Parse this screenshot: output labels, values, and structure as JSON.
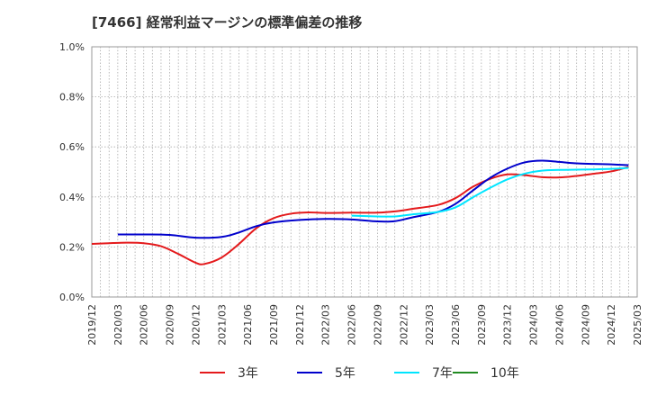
{
  "chart_data": {
    "type": "line",
    "title": "[7466]  経常利益マージンの標準偏差の推移",
    "xlabel": "",
    "ylabel": "",
    "ylim": [
      0,
      1.0
    ],
    "y_ticks": [
      "0.0%",
      "0.2%",
      "0.4%",
      "0.6%",
      "0.8%",
      "1.0%"
    ],
    "x_ticks": [
      "2019/12",
      "2020/03",
      "2020/06",
      "2020/09",
      "2020/12",
      "2021/03",
      "2021/06",
      "2021/09",
      "2021/12",
      "2022/03",
      "2022/06",
      "2022/09",
      "2022/12",
      "2023/03",
      "2023/06",
      "2023/09",
      "2023/12",
      "2024/03",
      "2024/06",
      "2024/09",
      "2024/12",
      "2025/03"
    ],
    "grid": true,
    "legend_position": "bottom",
    "series": [
      {
        "name": "3年",
        "color": "#e41a1c",
        "points": [
          [
            "2019/12",
            0.212
          ],
          [
            "2020/02",
            0.215
          ],
          [
            "2020/04",
            0.217
          ],
          [
            "2020/06",
            0.215
          ],
          [
            "2020/08",
            0.203
          ],
          [
            "2020/10",
            0.172
          ],
          [
            "2020/12",
            0.137
          ],
          [
            "2021/01",
            0.132
          ],
          [
            "2021/03",
            0.158
          ],
          [
            "2021/05",
            0.212
          ],
          [
            "2021/07",
            0.275
          ],
          [
            "2021/09",
            0.315
          ],
          [
            "2021/11",
            0.333
          ],
          [
            "2022/01",
            0.338
          ],
          [
            "2022/03",
            0.336
          ],
          [
            "2022/06",
            0.337
          ],
          [
            "2022/09",
            0.337
          ],
          [
            "2022/11",
            0.342
          ],
          [
            "2023/01",
            0.352
          ],
          [
            "2023/04",
            0.368
          ],
          [
            "2023/06",
            0.395
          ],
          [
            "2023/08",
            0.44
          ],
          [
            "2023/10",
            0.472
          ],
          [
            "2023/12",
            0.49
          ],
          [
            "2024/02",
            0.487
          ],
          [
            "2024/04",
            0.479
          ],
          [
            "2024/06",
            0.478
          ],
          [
            "2024/08",
            0.484
          ],
          [
            "2024/10",
            0.493
          ],
          [
            "2024/12",
            0.502
          ],
          [
            "2025/02",
            0.52
          ]
        ]
      },
      {
        "name": "5年",
        "color": "#0000cc",
        "points": [
          [
            "2020/03",
            0.25
          ],
          [
            "2020/06",
            0.25
          ],
          [
            "2020/09",
            0.248
          ],
          [
            "2020/12",
            0.237
          ],
          [
            "2021/03",
            0.24
          ],
          [
            "2021/05",
            0.258
          ],
          [
            "2021/07",
            0.283
          ],
          [
            "2021/09",
            0.298
          ],
          [
            "2021/12",
            0.308
          ],
          [
            "2022/03",
            0.312
          ],
          [
            "2022/06",
            0.31
          ],
          [
            "2022/09",
            0.302
          ],
          [
            "2022/11",
            0.303
          ],
          [
            "2023/01",
            0.318
          ],
          [
            "2023/04",
            0.34
          ],
          [
            "2023/06",
            0.372
          ],
          [
            "2023/08",
            0.425
          ],
          [
            "2023/10",
            0.476
          ],
          [
            "2023/12",
            0.513
          ],
          [
            "2024/02",
            0.538
          ],
          [
            "2024/04",
            0.545
          ],
          [
            "2024/06",
            0.54
          ],
          [
            "2024/08",
            0.534
          ],
          [
            "2024/10",
            0.532
          ],
          [
            "2024/12",
            0.53
          ],
          [
            "2025/02",
            0.527
          ]
        ]
      },
      {
        "name": "7年",
        "color": "#00e5ff",
        "points": [
          [
            "2022/06",
            0.325
          ],
          [
            "2022/09",
            0.322
          ],
          [
            "2022/11",
            0.322
          ],
          [
            "2023/01",
            0.33
          ],
          [
            "2023/04",
            0.34
          ],
          [
            "2023/06",
            0.358
          ],
          [
            "2023/08",
            0.398
          ],
          [
            "2023/10",
            0.436
          ],
          [
            "2023/12",
            0.47
          ],
          [
            "2024/02",
            0.493
          ],
          [
            "2024/04",
            0.505
          ],
          [
            "2024/06",
            0.508
          ],
          [
            "2024/08",
            0.509
          ],
          [
            "2024/10",
            0.51
          ],
          [
            "2024/12",
            0.512
          ],
          [
            "2025/02",
            0.516
          ]
        ]
      },
      {
        "name": "10年",
        "color": "#228b22",
        "points": []
      }
    ]
  }
}
